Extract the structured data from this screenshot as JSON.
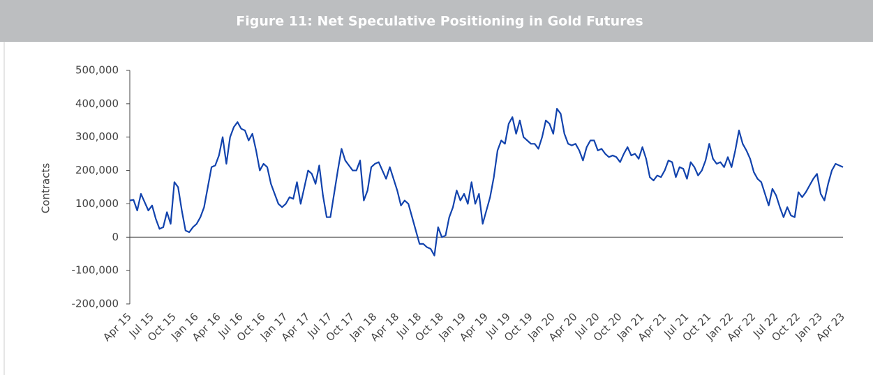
{
  "chart_data": {
    "type": "line",
    "title": "Figure 11: Net Speculative Positioning in Gold Futures",
    "ylabel": "Contracts",
    "categories": [
      "Apr 15",
      null,
      null,
      null,
      null,
      null,
      "Jul 15",
      null,
      null,
      null,
      null,
      null,
      "Oct 15",
      null,
      null,
      null,
      null,
      null,
      "Jan 16",
      null,
      null,
      null,
      null,
      null,
      "Apr 16",
      null,
      null,
      null,
      null,
      null,
      "Jul 16",
      null,
      null,
      null,
      null,
      null,
      "Oct 16",
      null,
      null,
      null,
      null,
      null,
      "Jan 17",
      null,
      null,
      null,
      null,
      null,
      "Apr 17",
      null,
      null,
      null,
      null,
      null,
      "Jul 17",
      null,
      null,
      null,
      null,
      null,
      "Oct 17",
      null,
      null,
      null,
      null,
      null,
      "Jan 18",
      null,
      null,
      null,
      null,
      null,
      "Apr 18",
      null,
      null,
      null,
      null,
      null,
      "Jul 18",
      null,
      null,
      null,
      null,
      null,
      "Oct 18",
      null,
      null,
      null,
      null,
      null,
      "Jan 19",
      null,
      null,
      null,
      null,
      null,
      "Apr 19",
      null,
      null,
      null,
      null,
      null,
      "Jul 19",
      null,
      null,
      null,
      null,
      null,
      "Oct 19",
      null,
      null,
      null,
      null,
      null,
      "Jan 20",
      null,
      null,
      null,
      null,
      null,
      "Apr 20",
      null,
      null,
      null,
      null,
      null,
      "Jul 20",
      null,
      null,
      null,
      null,
      null,
      "Oct 20",
      null,
      null,
      null,
      null,
      null,
      "Jan 21",
      null,
      null,
      null,
      null,
      null,
      "Apr 21",
      null,
      null,
      null,
      null,
      null,
      "Jul 21",
      null,
      null,
      null,
      null,
      null,
      "Oct 21",
      null,
      null,
      null,
      null,
      null,
      "Jan 22",
      null,
      null,
      null,
      null,
      null,
      "Apr 22",
      null,
      null,
      null,
      null,
      null,
      "Jul 22",
      null,
      null,
      null,
      null,
      null,
      "Oct 22",
      null,
      null,
      null,
      null,
      null,
      "Jan 23",
      null,
      null,
      null,
      null,
      null,
      "Apr 23"
    ],
    "series": [
      {
        "name": "Net Speculative Positioning",
        "color": "#1243ad",
        "values": [
          110000,
          112000,
          80000,
          130000,
          105000,
          80000,
          95000,
          55000,
          25000,
          30000,
          75000,
          40000,
          165000,
          150000,
          80000,
          20000,
          15000,
          30000,
          40000,
          60000,
          90000,
          150000,
          210000,
          215000,
          245000,
          300000,
          220000,
          300000,
          330000,
          345000,
          325000,
          320000,
          290000,
          310000,
          260000,
          200000,
          220000,
          210000,
          160000,
          130000,
          100000,
          90000,
          100000,
          120000,
          115000,
          165000,
          100000,
          150000,
          200000,
          190000,
          160000,
          215000,
          125000,
          60000,
          60000,
          130000,
          200000,
          265000,
          230000,
          215000,
          200000,
          200000,
          230000,
          110000,
          140000,
          210000,
          220000,
          225000,
          200000,
          175000,
          210000,
          175000,
          140000,
          95000,
          110000,
          100000,
          60000,
          20000,
          -20000,
          -20000,
          -30000,
          -35000,
          -55000,
          30000,
          0,
          5000,
          60000,
          90000,
          140000,
          110000,
          130000,
          100000,
          165000,
          100000,
          130000,
          40000,
          80000,
          120000,
          180000,
          260000,
          290000,
          280000,
          340000,
          360000,
          310000,
          350000,
          300000,
          290000,
          280000,
          280000,
          265000,
          300000,
          350000,
          340000,
          310000,
          385000,
          370000,
          310000,
          280000,
          275000,
          280000,
          260000,
          230000,
          270000,
          290000,
          290000,
          260000,
          265000,
          250000,
          240000,
          245000,
          240000,
          225000,
          250000,
          270000,
          245000,
          250000,
          235000,
          270000,
          235000,
          180000,
          170000,
          185000,
          180000,
          200000,
          230000,
          225000,
          180000,
          210000,
          205000,
          175000,
          225000,
          210000,
          185000,
          200000,
          230000,
          280000,
          235000,
          220000,
          225000,
          210000,
          240000,
          210000,
          260000,
          320000,
          280000,
          260000,
          235000,
          195000,
          175000,
          165000,
          130000,
          95000,
          145000,
          125000,
          90000,
          60000,
          90000,
          65000,
          60000,
          135000,
          120000,
          135000,
          155000,
          175000,
          190000,
          130000,
          110000,
          160000,
          200000,
          220000,
          215000,
          210000
        ]
      }
    ],
    "ylim": [
      -200000,
      500000
    ],
    "yticks": [
      {
        "value": -200000,
        "label": "-200,000"
      },
      {
        "value": -100000,
        "label": "-100,000"
      },
      0,
      {
        "value": 100000,
        "label": "100,000"
      },
      {
        "value": 200000,
        "label": "200,000"
      },
      {
        "value": 300000,
        "label": "300,000"
      },
      {
        "value": 400000,
        "label": "400,000"
      },
      {
        "value": 500000,
        "label": "500,000"
      }
    ],
    "grid": false
  }
}
